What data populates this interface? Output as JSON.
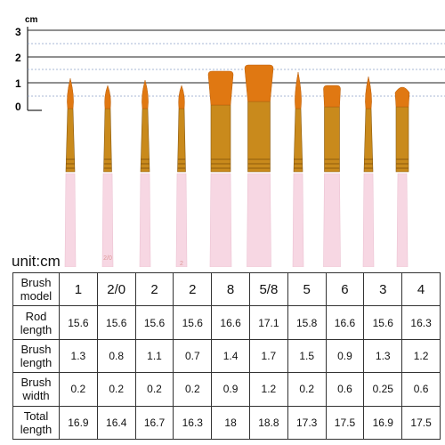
{
  "ruler": {
    "unit": "cm",
    "ticks": [
      "3",
      "2",
      "1",
      "0"
    ]
  },
  "brushes": [
    {
      "shape": "round",
      "model": "1"
    },
    {
      "shape": "round",
      "model": "2/0"
    },
    {
      "shape": "round",
      "model": "2"
    },
    {
      "shape": "round",
      "model": "2"
    },
    {
      "shape": "flat",
      "model": "8"
    },
    {
      "shape": "flat",
      "model": "5/8"
    },
    {
      "shape": "round",
      "model": "5"
    },
    {
      "shape": "flat",
      "model": "6"
    },
    {
      "shape": "round",
      "model": "3"
    },
    {
      "shape": "filbert",
      "model": "4"
    }
  ],
  "handle_marks": [
    "2/0",
    "2"
  ],
  "colors": {
    "handle": "#f7d7e3",
    "ferrule": "#c98a1c",
    "bristle": "#e07812",
    "guide_line": "#8aa0c8"
  },
  "unit_label": "unit:cm",
  "table": {
    "rows": [
      {
        "label": [
          "Brush",
          "model"
        ],
        "values": [
          "1",
          "2/0",
          "2",
          "2",
          "8",
          "5/8",
          "5",
          "6",
          "3",
          "4"
        ]
      },
      {
        "label": [
          "Rod",
          "length"
        ],
        "values": [
          "15.6",
          "15.6",
          "15.6",
          "15.6",
          "16.6",
          "17.1",
          "15.8",
          "16.6",
          "15.6",
          "16.3"
        ]
      },
      {
        "label": [
          "Brush",
          "length"
        ],
        "values": [
          "1.3",
          "0.8",
          "1.1",
          "0.7",
          "1.4",
          "1.7",
          "1.5",
          "0.9",
          "1.3",
          "1.2"
        ]
      },
      {
        "label": [
          "Brush",
          "width"
        ],
        "values": [
          "0.2",
          "0.2",
          "0.2",
          "0.2",
          "0.9",
          "1.2",
          "0.2",
          "0.6",
          "0.25",
          "0.6"
        ]
      },
      {
        "label": [
          "Total",
          "length"
        ],
        "values": [
          "16.9",
          "16.4",
          "16.7",
          "16.3",
          "18",
          "18.8",
          "17.3",
          "17.5",
          "16.9",
          "17.5"
        ]
      }
    ]
  }
}
